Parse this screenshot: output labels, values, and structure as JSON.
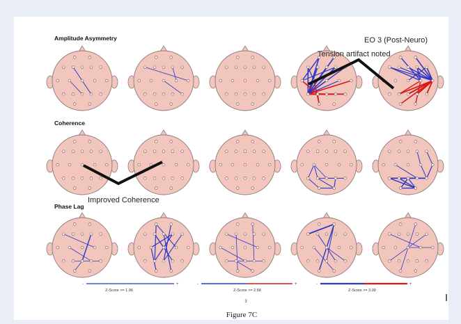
{
  "sections": [
    {
      "title": "Amplitude Asymmetry"
    },
    {
      "title": "Coherence"
    },
    {
      "title": "Phase Lag"
    }
  ],
  "annotations": {
    "eo3": "EO 3 (Post-Neuro)",
    "tension": "Tension artifact noted",
    "coherence": "Improved Coherence"
  },
  "z_scales": [
    {
      "label": "Z-Score >= 1.96"
    },
    {
      "label": "Z-Score >= 2.58"
    },
    {
      "label": "Z-Score >= 3.09"
    }
  ],
  "page_marker": "I",
  "sub_number": "3",
  "caption": "Figure 7C",
  "colors": {
    "head_fill": "#f2c6bd",
    "head_stroke": "#8a7a78",
    "blue": "#2a36c8",
    "red": "#d81818",
    "bg": "#e9eef6"
  }
}
